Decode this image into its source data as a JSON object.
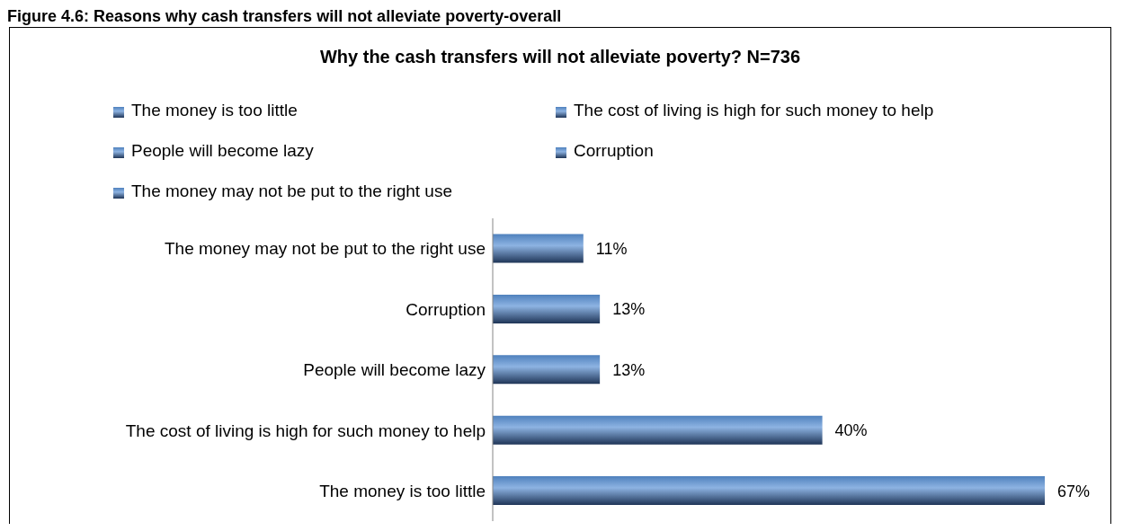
{
  "chart_data": {
    "type": "bar",
    "orientation": "horizontal",
    "stacked": true,
    "title": "Why the cash transfers will not alleviate poverty? N=736",
    "annotations": [
      "Figure 4.6: Reasons why cash transfers will not alleviate poverty-overall"
    ],
    "categories": [
      "The money may not be put to the right use",
      "Corruption",
      "People will become lazy",
      "The cost of living is high for such money to help",
      "The money is too little"
    ],
    "series": [
      {
        "name": "The money is too little",
        "color": "#4f81bd",
        "values": [
          null,
          null,
          null,
          null,
          67
        ],
        "value_labels": [
          null,
          null,
          null,
          null,
          "67%"
        ]
      },
      {
        "name": "The cost of living is high for such money to help",
        "color": "#4f81bd",
        "values": [
          null,
          null,
          null,
          40,
          null
        ],
        "value_labels": [
          null,
          null,
          null,
          "40%",
          null
        ]
      },
      {
        "name": "People will become lazy",
        "color": "#4f81bd",
        "values": [
          null,
          null,
          13,
          null,
          null
        ],
        "value_labels": [
          null,
          null,
          "13%",
          null,
          null
        ]
      },
      {
        "name": "Corruption",
        "color": "#4f81bd",
        "values": [
          null,
          13,
          null,
          null,
          null
        ],
        "value_labels": [
          null,
          "13%",
          null,
          null,
          null
        ]
      },
      {
        "name": "The money may not be put to the right use",
        "color": "#4f81bd",
        "values": [
          11,
          null,
          null,
          null,
          null
        ],
        "value_labels": [
          "11%",
          null,
          null,
          null,
          null
        ]
      }
    ],
    "tick_labels": "y",
    "legend": "top"
  }
}
